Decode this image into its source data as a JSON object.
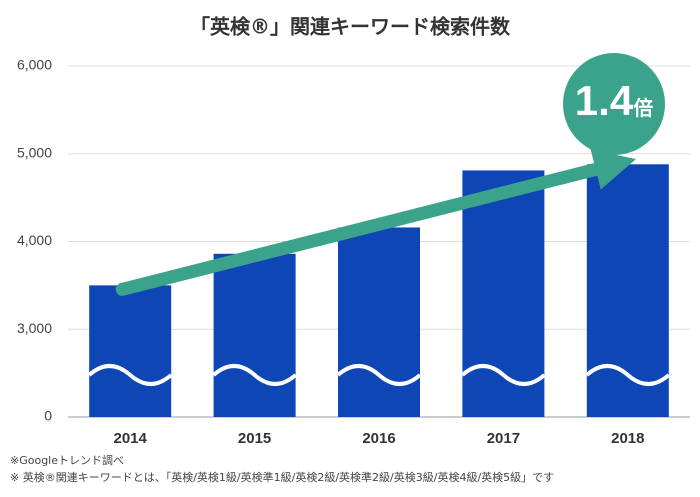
{
  "chart_data": {
    "type": "bar",
    "title": "「英検®」関連キーワード検索件数",
    "categories": [
      "2014",
      "2015",
      "2016",
      "2017",
      "2018"
    ],
    "values": [
      3500,
      3860,
      4160,
      4810,
      4880
    ],
    "color": "#0e46b5",
    "ylim": [
      0,
      6000
    ],
    "yticks": [
      0,
      {
        "value": 3000,
        "label": "3,000"
      },
      {
        "value": 4000,
        "label": "4,000"
      },
      {
        "value": 5000,
        "label": "5,000"
      },
      {
        "value": 6000,
        "label": "6,000"
      }
    ],
    "axis_break": true,
    "grid": true,
    "annotation": {
      "value": "1.4",
      "unit": "倍",
      "color": "#3ba38c"
    },
    "notes": [
      "※Googleトレンド調べ",
      "※ 英検®関連キーワードとは、「英検/英検1級/英検準1級/英検2級/英検準2級/英検3級/英検4級/英検5級」です"
    ]
  }
}
